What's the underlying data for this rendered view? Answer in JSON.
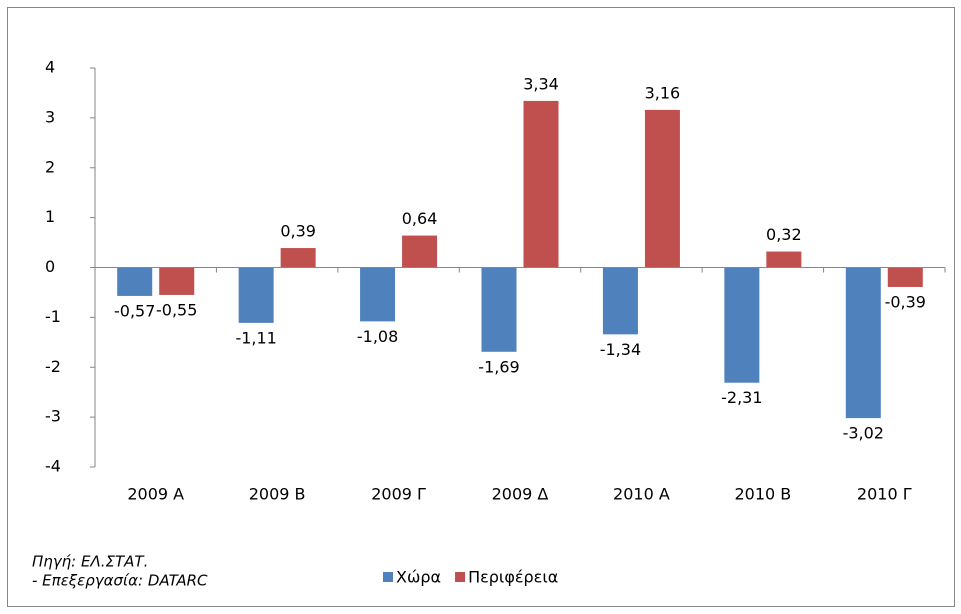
{
  "chart_data": {
    "type": "bar",
    "categories": [
      "2009 Α",
      "2009 Β",
      "2009 Γ",
      "2009 Δ",
      "2010 Α",
      "2010 Β",
      "2010 Γ"
    ],
    "series": [
      {
        "name": "Χώρα",
        "color": "#4f81bd",
        "values": [
          -0.57,
          -1.11,
          -1.08,
          -1.69,
          -1.34,
          -2.31,
          -3.02
        ],
        "value_labels": [
          "-0,57",
          "-1,11",
          "-1,08",
          "-1,69",
          "-1,34",
          "-2,31",
          "-3,02"
        ]
      },
      {
        "name": "Περιφέρεια",
        "color": "#c0504d",
        "values": [
          -0.55,
          0.39,
          0.64,
          3.34,
          3.16,
          0.32,
          -0.39
        ],
        "value_labels": [
          "-0,55",
          "0,39",
          "0,64",
          "3,34",
          "3,16",
          "0,32",
          "-0,39"
        ]
      }
    ],
    "ylim": [
      -4,
      4
    ],
    "yticks": [
      -4,
      -3,
      -2,
      -1,
      0,
      1,
      2,
      3,
      4
    ],
    "grid": false,
    "notes": [
      "Πηγή: ΕΛ.ΣΤΑΤ.",
      "- Επεξεργασία: DATARC"
    ]
  }
}
